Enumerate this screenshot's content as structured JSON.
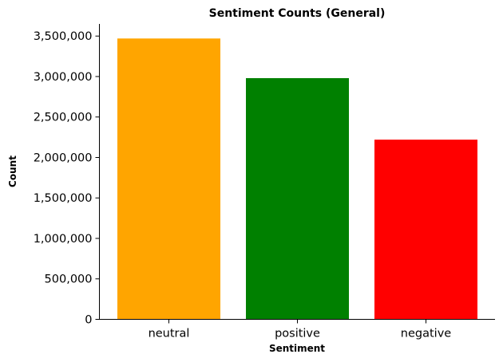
{
  "chart_data": {
    "type": "bar",
    "title": "Sentiment Counts (General)",
    "xlabel": "Sentiment",
    "ylabel": "Count",
    "categories": [
      "neutral",
      "positive",
      "negative"
    ],
    "values": [
      3470000,
      2980000,
      2220000
    ],
    "colors": [
      "#ffa500",
      "#008000",
      "#ff0000"
    ],
    "ylim": [
      0,
      3650000
    ],
    "yticks": [
      0,
      500000,
      1000000,
      1500000,
      2000000,
      2500000,
      3000000,
      3500000
    ],
    "ytick_labels": [
      "0",
      "500,000",
      "1,000,000",
      "1,500,000",
      "2,000,000",
      "2,500,000",
      "3,000,000",
      "3,500,000"
    ],
    "grid": false,
    "legend": false,
    "spines": [
      "left",
      "bottom"
    ]
  }
}
